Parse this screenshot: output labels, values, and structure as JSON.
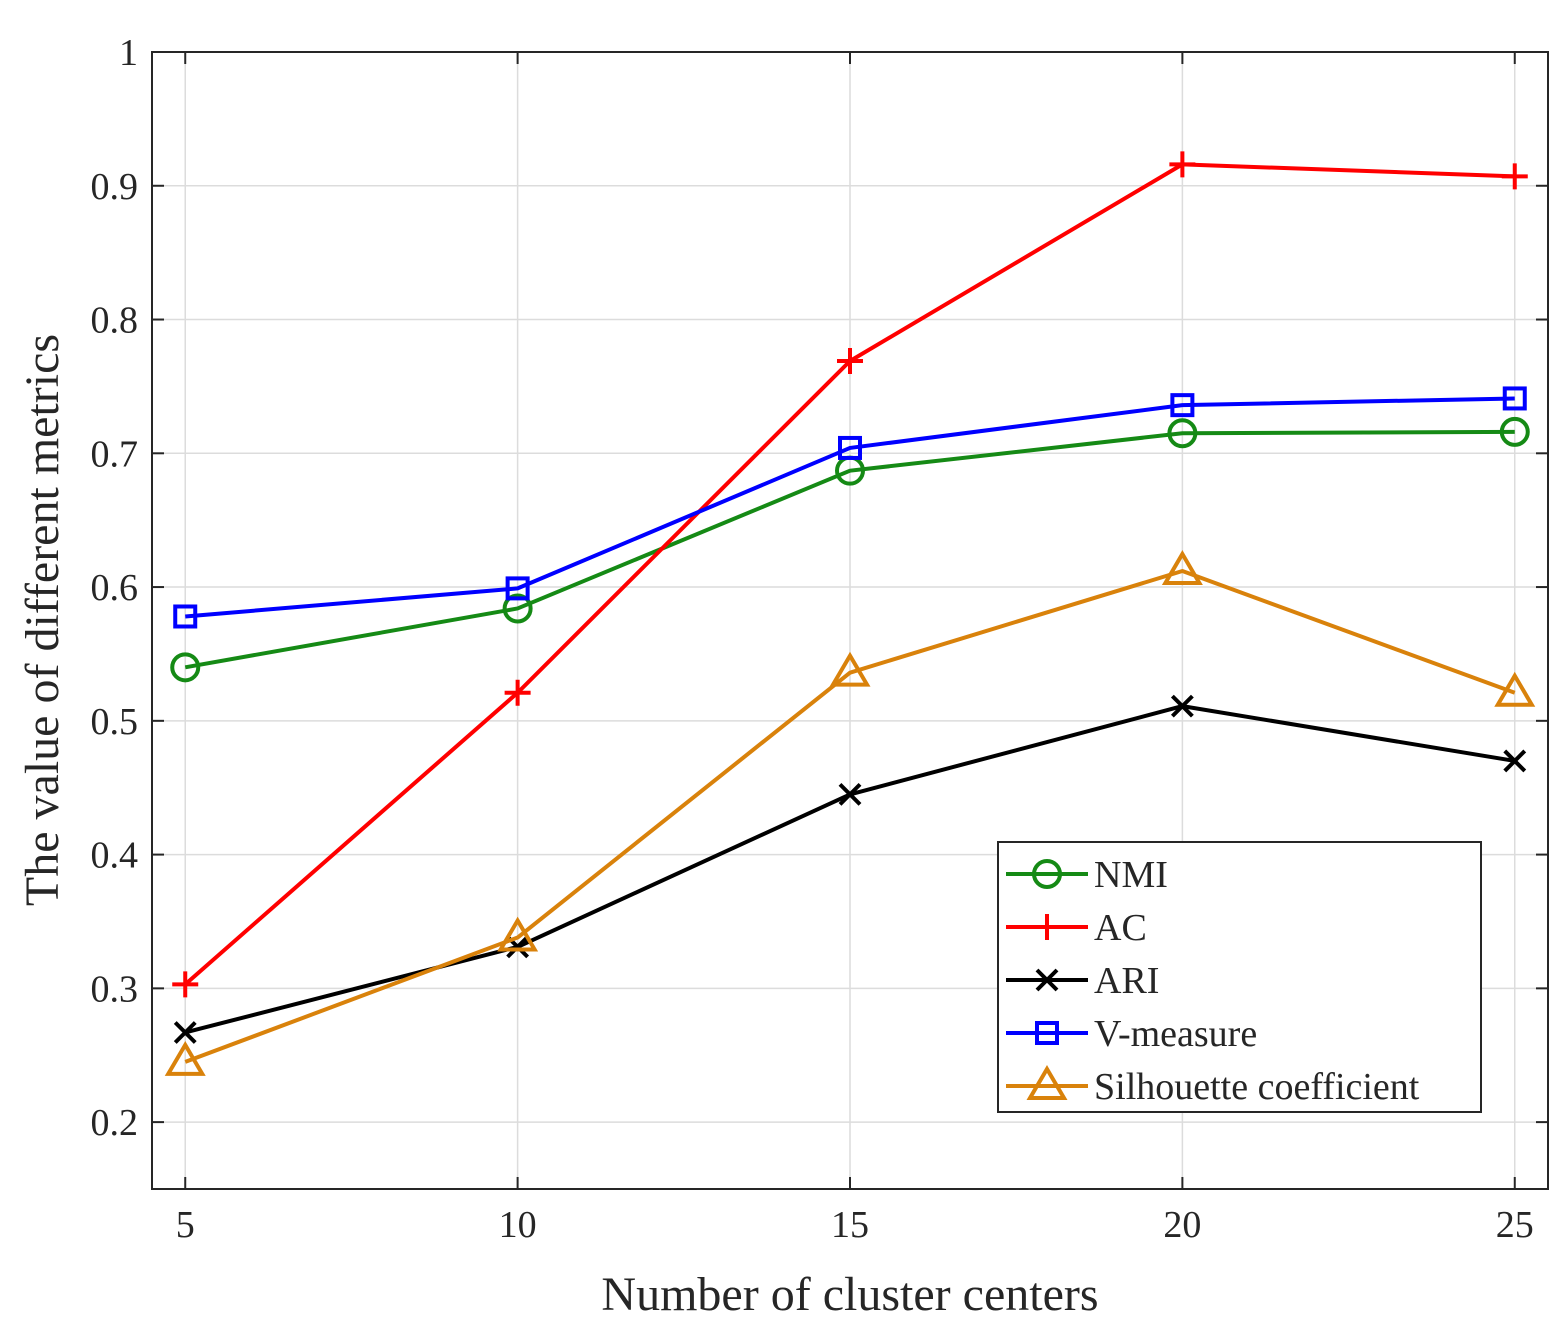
{
  "chart_data": {
    "type": "line",
    "title": "",
    "xlabel": "Number of cluster centers",
    "ylabel": "The value of different metrics",
    "x": [
      5,
      10,
      15,
      20,
      25
    ],
    "xlim": [
      4.5,
      25.5
    ],
    "ylim": [
      0.15,
      1.0
    ],
    "xticks": [
      5,
      10,
      15,
      20,
      25
    ],
    "xtick_labels": [
      "5",
      "10",
      "15",
      "20",
      "25"
    ],
    "yticks": [
      0.2,
      0.3,
      0.4,
      0.5,
      0.6,
      0.7,
      0.8,
      0.9,
      1.0
    ],
    "ytick_labels": [
      "0.2",
      "0.3",
      "0.4",
      "0.5",
      "0.6",
      "0.7",
      "0.8",
      "0.9",
      "1"
    ],
    "grid": true,
    "legend_position": "bottom-right",
    "series": [
      {
        "name": "NMI",
        "color": "#158a15",
        "marker": "circle",
        "values": [
          0.54,
          0.584,
          0.687,
          0.715,
          0.716
        ]
      },
      {
        "name": "AC",
        "color": "#ff0000",
        "marker": "plus",
        "values": [
          0.303,
          0.521,
          0.769,
          0.916,
          0.907
        ]
      },
      {
        "name": "ARI",
        "color": "#000000",
        "marker": "x",
        "values": [
          0.267,
          0.331,
          0.445,
          0.511,
          0.47
        ]
      },
      {
        "name": "V-measure",
        "color": "#0000ff",
        "marker": "square",
        "values": [
          0.578,
          0.599,
          0.704,
          0.736,
          0.741
        ]
      },
      {
        "name": "Silhouette coefficient",
        "color": "#d9820b",
        "marker": "triangle",
        "values": [
          0.245,
          0.338,
          0.536,
          0.612,
          0.521
        ]
      }
    ]
  }
}
